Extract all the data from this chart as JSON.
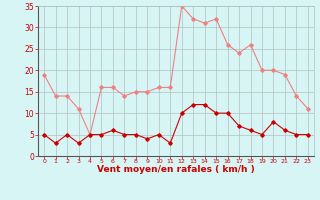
{
  "hours": [
    0,
    1,
    2,
    3,
    4,
    5,
    6,
    7,
    8,
    9,
    10,
    11,
    12,
    13,
    14,
    15,
    16,
    17,
    18,
    19,
    20,
    21,
    22,
    23
  ],
  "rafales": [
    19,
    14,
    14,
    11,
    5,
    16,
    16,
    14,
    15,
    15,
    16,
    16,
    35,
    32,
    31,
    32,
    26,
    24,
    26,
    20,
    20,
    19,
    14,
    11
  ],
  "moyen": [
    5,
    3,
    5,
    3,
    5,
    5,
    6,
    5,
    5,
    4,
    5,
    3,
    10,
    12,
    12,
    10,
    10,
    7,
    6,
    5,
    8,
    6,
    5,
    5
  ],
  "line_color_rafales": "#f08080",
  "line_color_moyen": "#cc0000",
  "marker": "D",
  "marker_size": 1.8,
  "background_color": "#d8f5f5",
  "grid_color": "#b0c0c0",
  "xlabel": "Vent moyen/en rafales ( km/h )",
  "xlabel_color": "#cc0000",
  "tick_color": "#cc0000",
  "ylim": [
    0,
    35
  ],
  "yticks": [
    0,
    5,
    10,
    15,
    20,
    25,
    30,
    35
  ],
  "figsize": [
    3.2,
    2.0
  ],
  "dpi": 100
}
